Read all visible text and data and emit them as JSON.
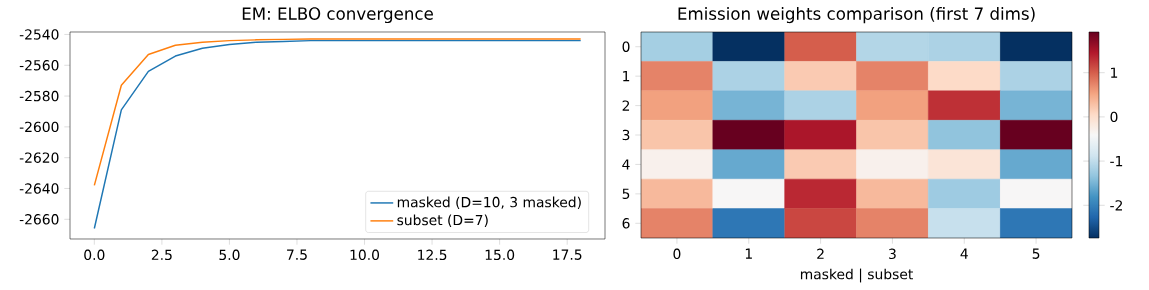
{
  "chart_data": [
    {
      "type": "line",
      "title": "EM: ELBO convergence",
      "x": [
        0,
        1,
        2,
        3,
        4,
        5,
        6,
        7,
        8,
        9,
        10,
        11,
        12,
        13,
        14,
        15,
        16,
        17,
        18
      ],
      "series": [
        {
          "name": "masked (D=10, 3 masked)",
          "color": "#1f77b4",
          "values": [
            -2666,
            -2589,
            -2564,
            -2554,
            -2549,
            -2546.5,
            -2545,
            -2544.5,
            -2544,
            -2544,
            -2544,
            -2544,
            -2544,
            -2544,
            -2544,
            -2544,
            -2544,
            -2544,
            -2544
          ]
        },
        {
          "name": "subset (D=7)",
          "color": "#ff7f0e",
          "values": [
            -2638,
            -2573,
            -2553,
            -2547,
            -2545,
            -2544,
            -2543.5,
            -2543.2,
            -2543,
            -2543,
            -2543,
            -2543,
            -2543,
            -2543,
            -2543,
            -2543,
            -2543,
            -2543,
            -2543
          ]
        }
      ],
      "xlim": [
        -0.9,
        18.9
      ],
      "ylim": [
        -2672.8,
        -2538.4
      ],
      "xticks": [
        {
          "value": 0,
          "label": "0.0"
        },
        {
          "value": 2.5,
          "label": "2.5"
        },
        {
          "value": 5,
          "label": "5.0"
        },
        {
          "value": 7.5,
          "label": "7.5"
        },
        {
          "value": 10,
          "label": "10.0"
        },
        {
          "value": 12.5,
          "label": "12.5"
        },
        {
          "value": 15,
          "label": "15.0"
        },
        {
          "value": 17.5,
          "label": "17.5"
        }
      ],
      "yticks": [
        -2660,
        -2640,
        -2620,
        -2600,
        -2580,
        -2560,
        -2540
      ],
      "legend": "bottom right"
    },
    {
      "type": "heatmap",
      "title": "Emission weights comparison (first 7 dims)",
      "xlabel": "masked | subset",
      "categories": [
        "0",
        "1",
        "2",
        "3",
        "4",
        "5"
      ],
      "y_categories": [
        "0",
        "1",
        "2",
        "3",
        "4",
        "5",
        "6"
      ],
      "cells": [
        [
          -1.2,
          -2.74,
          1.0,
          -1.1,
          -1.15,
          -2.74
        ],
        [
          0.75,
          -1.15,
          0.2,
          0.75,
          0.05,
          -1.15
        ],
        [
          0.55,
          -1.5,
          -1.15,
          0.55,
          1.3,
          -1.5
        ],
        [
          0.25,
          1.92,
          1.5,
          0.25,
          -1.35,
          1.92
        ],
        [
          -0.3,
          -1.6,
          0.2,
          -0.3,
          -0.1,
          -1.6
        ],
        [
          0.35,
          -0.4,
          1.35,
          0.35,
          -1.25,
          -0.4
        ],
        [
          0.75,
          -2.1,
          1.15,
          0.75,
          -0.95,
          -2.1
        ]
      ],
      "clim": [
        -2.74,
        1.92
      ],
      "cticks": [
        -2,
        -1,
        0,
        1
      ]
    }
  ]
}
